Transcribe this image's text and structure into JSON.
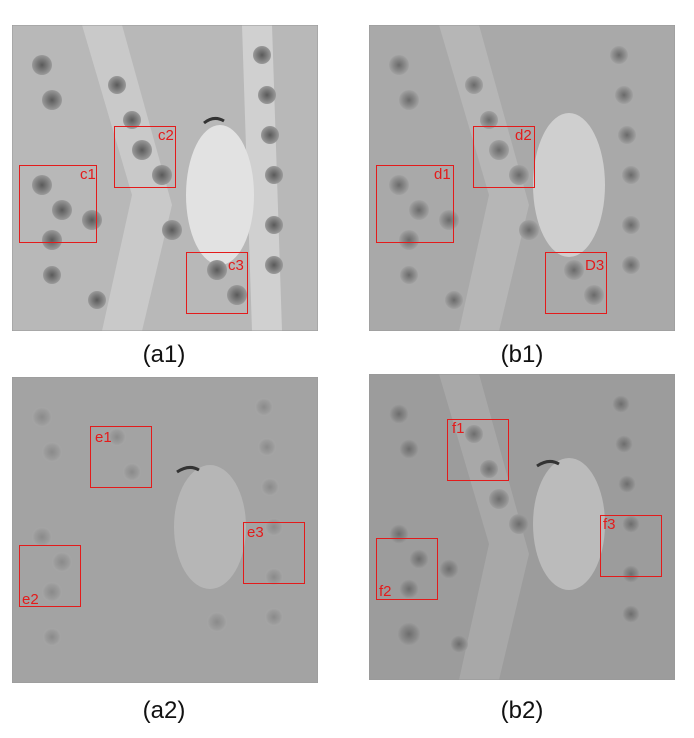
{
  "panels": [
    {
      "caption": "(a1)",
      "tone": "#b9b9b9",
      "rois": [
        "c1",
        "c2",
        "c3"
      ]
    },
    {
      "caption": "(b1)",
      "tone": "#a9a9a9",
      "rois": [
        "d1",
        "d2",
        "D3"
      ]
    },
    {
      "caption": "(a2)",
      "tone": "#a3a3a3",
      "rois": [
        "e1",
        "e3",
        "e2"
      ]
    },
    {
      "caption": "(b2)",
      "tone": "#9c9c9c",
      "rois": [
        "f1",
        "f3",
        "f2"
      ]
    }
  ],
  "colors": {
    "roi": "#e31b1b",
    "background": "#ffffff"
  }
}
